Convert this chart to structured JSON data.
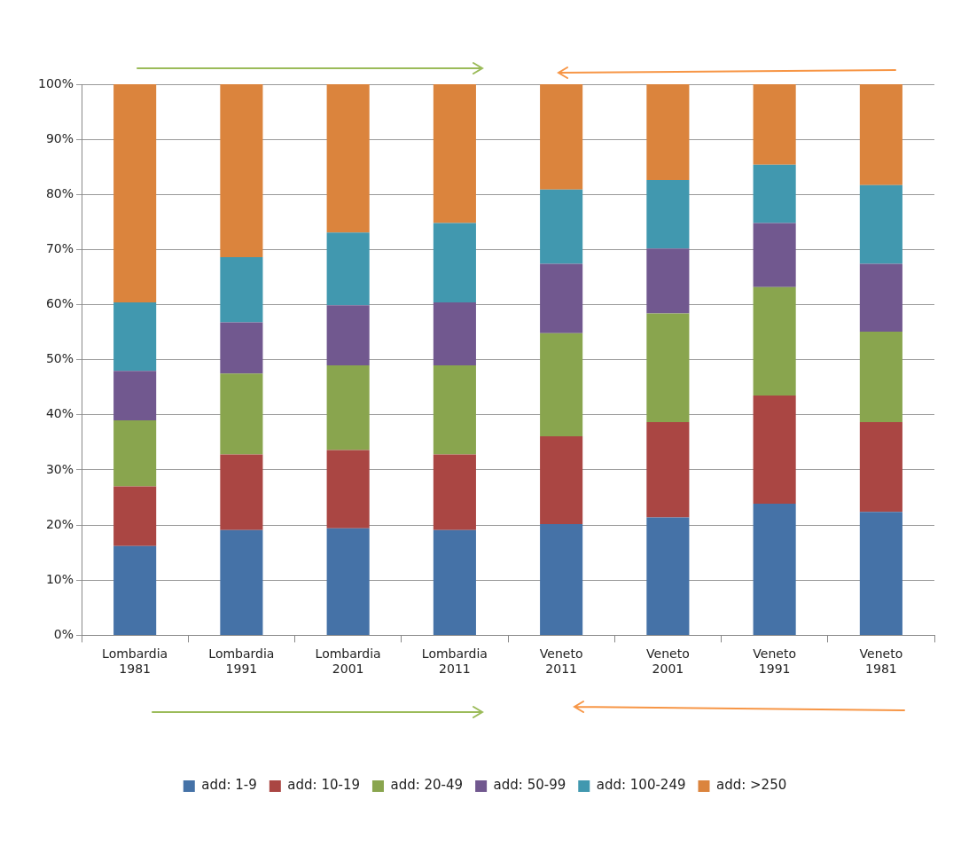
{
  "chart_data": {
    "type": "bar",
    "stacked": true,
    "categories": [
      "Lombardia 1981",
      "Lombardia 1991",
      "Lombardia 2001",
      "Lombardia 2011",
      "Veneto 2011",
      "Veneto 2001",
      "Veneto 1991",
      "Veneto 1981"
    ],
    "series": [
      {
        "name": "add: 1-9",
        "color": "#4572a7",
        "values": [
          16.2,
          19.1,
          19.4,
          19.1,
          20.2,
          21.4,
          23.9,
          22.4
        ]
      },
      {
        "name": "add: 10-19",
        "color": "#aa4643",
        "values": [
          10.8,
          13.7,
          14.2,
          13.7,
          15.9,
          17.3,
          19.6,
          16.3
        ]
      },
      {
        "name": "add: 20-49",
        "color": "#89a54e",
        "values": [
          12.0,
          14.7,
          15.4,
          16.2,
          18.7,
          19.7,
          19.7,
          16.4
        ]
      },
      {
        "name": "add: 50-99",
        "color": "#71588f",
        "values": [
          9.0,
          9.3,
          10.9,
          11.4,
          12.6,
          11.8,
          11.6,
          12.3
        ]
      },
      {
        "name": "add: 100-249",
        "color": "#4198af",
        "values": [
          12.4,
          11.8,
          13.2,
          14.4,
          13.5,
          12.4,
          10.6,
          14.3
        ]
      },
      {
        "name": "add: >250",
        "color": "#db843d",
        "values": [
          39.6,
          31.4,
          26.9,
          25.2,
          19.1,
          17.4,
          14.6,
          18.3
        ]
      }
    ],
    "ylim": [
      0,
      100
    ],
    "yticks": [
      {
        "value": 0,
        "label": "0%"
      },
      {
        "value": 10,
        "label": "10%"
      },
      {
        "value": 20,
        "label": "20%"
      },
      {
        "value": 30,
        "label": "30%"
      },
      {
        "value": 40,
        "label": "40%"
      },
      {
        "value": 50,
        "label": "50%"
      },
      {
        "value": 60,
        "label": "60%"
      },
      {
        "value": 70,
        "label": "70%"
      },
      {
        "value": 80,
        "label": "80%"
      },
      {
        "value": 90,
        "label": "90%"
      },
      {
        "value": 100,
        "label": "100%"
      }
    ],
    "grid": "y",
    "legend": "bottom"
  }
}
